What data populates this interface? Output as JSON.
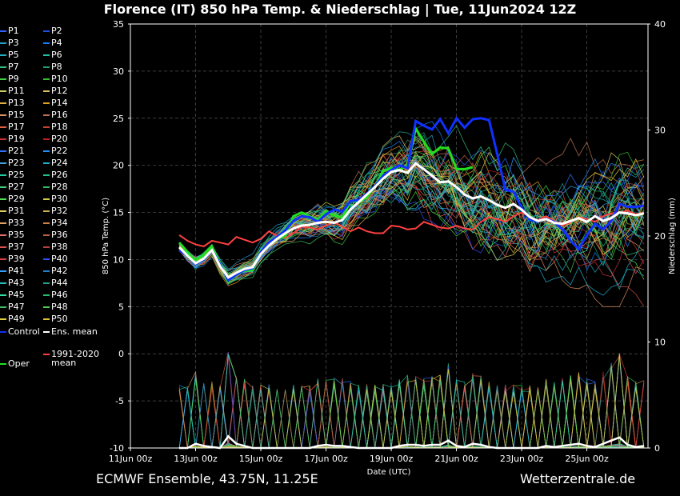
{
  "header": {
    "title": "Florence  (IT)  850 hPa Temp. & Niederschlag | Tue, 11Jun2024 12Z"
  },
  "footer": {
    "left": "ECMWF Ensemble, 43.75N, 11.25E",
    "right": "Wetterzentrale.de"
  },
  "chart_data": {
    "type": "line",
    "title": "Florence  (IT)  850 hPa Temp. & Niederschlag | Tue, 11Jun2024 12Z",
    "xlabel": "Date (UTC)",
    "ylabel": "850 hPa Temp. (°C)",
    "y2label": "Niederschlag (mm)",
    "ylim": [
      -10,
      35
    ],
    "y2lim": [
      0,
      40
    ],
    "xlim": [
      "2024-06-11 00:00",
      "2024-06-26 21:00"
    ],
    "x_ticks": [
      "11Jun 00z",
      "13Jun 00z",
      "15Jun 00z",
      "17Jun 00z",
      "19Jun 00z",
      "21Jun 00z",
      "23Jun 00z",
      "25Jun 00z"
    ],
    "y_ticks": [
      -10,
      -5,
      0,
      5,
      10,
      15,
      20,
      25,
      30,
      35
    ],
    "y2_ticks": [
      0,
      10,
      20,
      30,
      40
    ],
    "grid": true,
    "x_days": [
      1.5,
      1.75,
      2,
      2.25,
      2.5,
      2.75,
      3,
      3.25,
      3.5,
      3.75,
      4,
      4.25,
      4.5,
      4.75,
      5,
      5.25,
      5.5,
      5.75,
      6,
      6.25,
      6.5,
      6.75,
      7,
      7.25,
      7.5,
      7.75,
      8,
      8.25,
      8.5,
      8.75,
      9,
      9.25,
      9.5,
      9.75,
      10,
      10.25,
      10.5,
      10.75,
      11,
      11.25,
      11.5,
      11.75,
      12,
      12.25,
      12.5,
      12.75,
      13,
      13.25,
      13.5,
      13.75,
      14,
      14.25,
      14.5,
      14.75,
      15,
      15.25,
      15.5,
      15.75
    ],
    "series": [
      {
        "name": "Ens. mean",
        "color": "#ffffff",
        "values": [
          11.3,
          10.4,
          9.6,
          10.1,
          11.0,
          9.3,
          8.1,
          8.6,
          9.0,
          9.2,
          10.6,
          11.5,
          12.2,
          12.8,
          13.3,
          13.6,
          13.7,
          13.9,
          14.0,
          13.9,
          14.2,
          15.3,
          16.1,
          16.9,
          17.7,
          18.6,
          19.3,
          19.5,
          19.2,
          20.2,
          19.6,
          18.9,
          18.2,
          18.3,
          17.7,
          16.9,
          16.5,
          16.7,
          16.3,
          15.8,
          15.5,
          15.9,
          15.3,
          14.5,
          14.1,
          14.3,
          13.9,
          13.8,
          14.1,
          14.4,
          14.0,
          14.6,
          14.1,
          14.4,
          15.0,
          14.9,
          14.7,
          14.9
        ]
      },
      {
        "name": "1991-2020 mean",
        "color": "#ff4040",
        "values": [
          12.6,
          12.0,
          11.6,
          11.4,
          12.0,
          11.8,
          11.6,
          12.4,
          12.1,
          11.8,
          12.2,
          13.0,
          12.5,
          12.3,
          12.8,
          13.5,
          13.4,
          13.2,
          13.6,
          14.0,
          13.5,
          13.0,
          13.4,
          13.0,
          12.8,
          12.8,
          13.6,
          13.5,
          13.2,
          13.3,
          14.0,
          13.7,
          13.4,
          13.3,
          13.6,
          13.3,
          13.2,
          14.0,
          14.5,
          14.3,
          14.0,
          14.6,
          15.0,
          14.5,
          14.2,
          14.6,
          14.1,
          13.6,
          14.0,
          14.5,
          14.3,
          14.0,
          14.6,
          14.9,
          15.0,
          15.2,
          14.8,
          15.0
        ]
      },
      {
        "name": "Control",
        "color": "#1030ff",
        "values": [
          11.0,
          10.4,
          9.5,
          10.0,
          11.0,
          9.5,
          7.8,
          8.4,
          8.9,
          9.1,
          10.8,
          11.8,
          12.4,
          13.1,
          14.1,
          14.6,
          14.5,
          14.0,
          14.8,
          15.3,
          15.1,
          16.2,
          16.3,
          17.0,
          17.8,
          18.9,
          19.5,
          20.0,
          19.7,
          24.7,
          24.2,
          23.8,
          24.9,
          23.4,
          25.0,
          24.0,
          24.9,
          25.0,
          24.8,
          21.2,
          17.4,
          17.2,
          15.5,
          14.2,
          14.1,
          14.3,
          14.0,
          13.2,
          12.0,
          11.1,
          12.6,
          13.8,
          13.2,
          14.1,
          15.9,
          15.6,
          15.6,
          15.7
        ]
      },
      {
        "name": "Oper",
        "color": "#20e020",
        "values": [
          11.8,
          10.8,
          9.9,
          10.5,
          11.4,
          9.6,
          7.7,
          8.4,
          8.8,
          8.9,
          10.9,
          11.7,
          12.2,
          12.5,
          14.6,
          15.0,
          14.6,
          14.2,
          15.1,
          14.7,
          14.4,
          16.2,
          16.1,
          16.6,
          17.8,
          19.4,
          19.7,
          19.5,
          20.1,
          23.9,
          22.5,
          21.2,
          21.9,
          21.8,
          19.6,
          19.6,
          19.8
        ]
      }
    ],
    "members_range": {
      "count": 50,
      "spread_min": 5,
      "spread_max": 26
    },
    "precip_mean": [
      0,
      0,
      0.4,
      0.2,
      0.1,
      0,
      1.1,
      0.4,
      0.2,
      0,
      0,
      0,
      0,
      0,
      0,
      0,
      0,
      0.2,
      0.3,
      0.2,
      0.2,
      0.1,
      0,
      0,
      0,
      0,
      0,
      0.2,
      0.3,
      0.3,
      0.2,
      0.3,
      0.3,
      0.7,
      0.2,
      0.1,
      0.4,
      0.3,
      0.1,
      0,
      0,
      0,
      0,
      0,
      0,
      0.2,
      0.1,
      0.2,
      0.3,
      0.4,
      0.2,
      0.1,
      0.4,
      0.7,
      1.0,
      0.3,
      0.1,
      0.2
    ]
  },
  "legend": {
    "members": [
      "P1",
      "P2",
      "P3",
      "P4",
      "P5",
      "P6",
      "P7",
      "P8",
      "P9",
      "P10",
      "P11",
      "P12",
      "P13",
      "P14",
      "P15",
      "P16",
      "P17",
      "P18",
      "P19",
      "P20",
      "P21",
      "P22",
      "P23",
      "P24",
      "P25",
      "P26",
      "P27",
      "P28",
      "P29",
      "P30",
      "P31",
      "P32",
      "P33",
      "P34",
      "P35",
      "P36",
      "P37",
      "P38",
      "P39",
      "P40",
      "P41",
      "P42",
      "P43",
      "P44",
      "P45",
      "P46",
      "P47",
      "P48",
      "P49",
      "P50"
    ],
    "member_colors": [
      "#3060ff",
      "#2050e0",
      "#20a0d0",
      "#1080ff",
      "#20b0c0",
      "#20c0a0",
      "#30c080",
      "#20a070",
      "#40d040",
      "#30c030",
      "#d0d060",
      "#e0c060",
      "#e0b040",
      "#e0a020",
      "#e09060",
      "#c07050",
      "#e06040",
      "#d04030",
      "#d03030",
      "#c02020",
      "#3070ff",
      "#2090ff",
      "#40a0e0",
      "#20b0d0",
      "#20d0a0",
      "#20c090",
      "#40d080",
      "#30c060",
      "#50e050",
      "#d0d040",
      "#e0d060",
      "#d0b050",
      "#e0a060",
      "#d08040",
      "#e07060",
      "#c06040",
      "#e05050",
      "#c04040",
      "#e04040",
      "#3050ff",
      "#30a0ff",
      "#2080d0",
      "#20c0c0",
      "#20a090",
      "#30e0a0",
      "#20c070",
      "#40c060",
      "#50d050",
      "#e0d040",
      "#e0c030"
    ],
    "control": "Control",
    "mean": "Ens. mean",
    "clim_line1": "1991-2020",
    "clim_line2": "mean",
    "oper": "Oper"
  }
}
